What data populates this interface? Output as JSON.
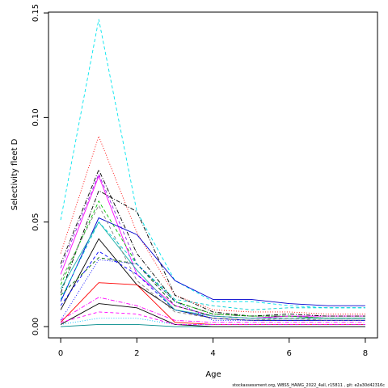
{
  "chart_data": {
    "type": "line",
    "xlabel": "Age",
    "ylabel": "Selectivity fleet D",
    "footer": "stockassessment.org, WBSS_HAWG_2022_4all, r15811 , git: e2a30d42316c",
    "x": [
      0,
      1,
      2,
      3,
      4,
      5,
      6,
      7,
      8
    ],
    "xlim": [
      -0.32,
      8.32
    ],
    "xticks": [
      0,
      2,
      4,
      6,
      8
    ],
    "ylim": [
      -0.0054,
      0.1504
    ],
    "yticks": [
      {
        "value": 0,
        "label": "0.00"
      },
      0.05,
      {
        "value": 0.1,
        "label": "0.10"
      },
      0.15
    ],
    "series": [
      {
        "color": "#00e5ee",
        "dash": "dashed",
        "values": [
          0.051,
          0.147,
          0.055,
          0.022,
          0.012,
          0.012,
          0.01,
          0.009,
          0.009
        ]
      },
      {
        "color": "#ff0000",
        "dash": "dotted",
        "values": [
          0.035,
          0.091,
          0.045,
          0.015,
          0.008,
          0.007,
          0.007,
          0.006,
          0.006
        ]
      },
      {
        "color": "#000000",
        "dash": "dashdot",
        "values": [
          0.03,
          0.075,
          0.035,
          0.012,
          0.006,
          0.005,
          0.005,
          0.004,
          0.004
        ]
      },
      {
        "color": "#8a2be2",
        "dash": "dashed",
        "values": [
          0.028,
          0.073,
          0.03,
          0.01,
          0.005,
          0.004,
          0.005,
          0.004,
          0.004
        ]
      },
      {
        "color": "#ff00ff",
        "dash": "solid",
        "values": [
          0.025,
          0.072,
          0.025,
          0.01,
          0.005,
          0.004,
          0.005,
          0.005,
          0.005
        ]
      },
      {
        "color": "#000000",
        "dash": "dashdot",
        "values": [
          0.016,
          0.065,
          0.055,
          0.015,
          0.007,
          0.005,
          0.006,
          0.005,
          0.005
        ]
      },
      {
        "color": "#0000cd",
        "dash": "solid",
        "values": [
          0.012,
          0.052,
          0.044,
          0.022,
          0.013,
          0.013,
          0.011,
          0.01,
          0.01
        ]
      },
      {
        "color": "#00c000",
        "dash": "dashed",
        "values": [
          0.02,
          0.06,
          0.03,
          0.012,
          0.006,
          0.005,
          0.005,
          0.004,
          0.004
        ]
      },
      {
        "color": "#000000",
        "dash": "solid",
        "values": [
          0.008,
          0.042,
          0.02,
          0.008,
          0.004,
          0.003,
          0.003,
          0.003,
          0.003
        ]
      },
      {
        "color": "#006400",
        "dash": "dashed",
        "values": [
          0.015,
          0.033,
          0.03,
          0.01,
          0.005,
          0.004,
          0.004,
          0.004,
          0.004
        ]
      },
      {
        "color": "#ff0000",
        "dash": "solid",
        "values": [
          0.002,
          0.021,
          0.02,
          0.002,
          0.001,
          0.001,
          0.001,
          0.001,
          0.001
        ]
      },
      {
        "color": "#0000ff",
        "dash": "dashed",
        "values": [
          0.01,
          0.036,
          0.025,
          0.008,
          0.004,
          0.003,
          0.003,
          0.003,
          0.003
        ]
      },
      {
        "color": "#ff00ff",
        "dash": "dashdot",
        "values": [
          0.003,
          0.014,
          0.01,
          0.003,
          0.002,
          0.002,
          0.002,
          0.002,
          0.002
        ]
      },
      {
        "color": "#00bfff",
        "dash": "dotted",
        "values": [
          0.001,
          0.004,
          0.004,
          0.001,
          0.001,
          0.001,
          0.001,
          0.001,
          0.001
        ]
      },
      {
        "color": "#008b8b",
        "dash": "solid",
        "values": [
          0.0,
          0.001,
          0.001,
          0.0,
          0.0,
          0.0,
          0.0,
          0.0,
          0.0
        ]
      },
      {
        "color": "#20b2aa",
        "dash": "solid",
        "values": [
          0.018,
          0.05,
          0.027,
          0.008,
          0.005,
          0.004,
          0.004,
          0.004,
          0.004
        ]
      },
      {
        "color": "#808080",
        "dash": "dashed",
        "values": [
          0.022,
          0.058,
          0.022,
          0.007,
          0.004,
          0.003,
          0.004,
          0.003,
          0.003
        ]
      },
      {
        "color": "#000000",
        "dash": "solid",
        "values": [
          0.001,
          0.011,
          0.009,
          0.001,
          0.0,
          0.0,
          0.0,
          0.0,
          0.0
        ]
      },
      {
        "color": "#00ced1",
        "dash": "dashed",
        "values": [
          0.013,
          0.05,
          0.03,
          0.013,
          0.01,
          0.008,
          0.009,
          0.009,
          0.009
        ]
      },
      {
        "color": "#0000ff",
        "dash": "dotted",
        "values": [
          0.003,
          0.032,
          0.03,
          0.012,
          0.003,
          0.003,
          0.003,
          0.003,
          0.003
        ]
      },
      {
        "color": "#ff00ff",
        "dash": "dashed",
        "values": [
          0.002,
          0.007,
          0.006,
          0.001,
          0.001,
          0.001,
          0.001,
          0.001,
          0.001
        ]
      }
    ]
  }
}
